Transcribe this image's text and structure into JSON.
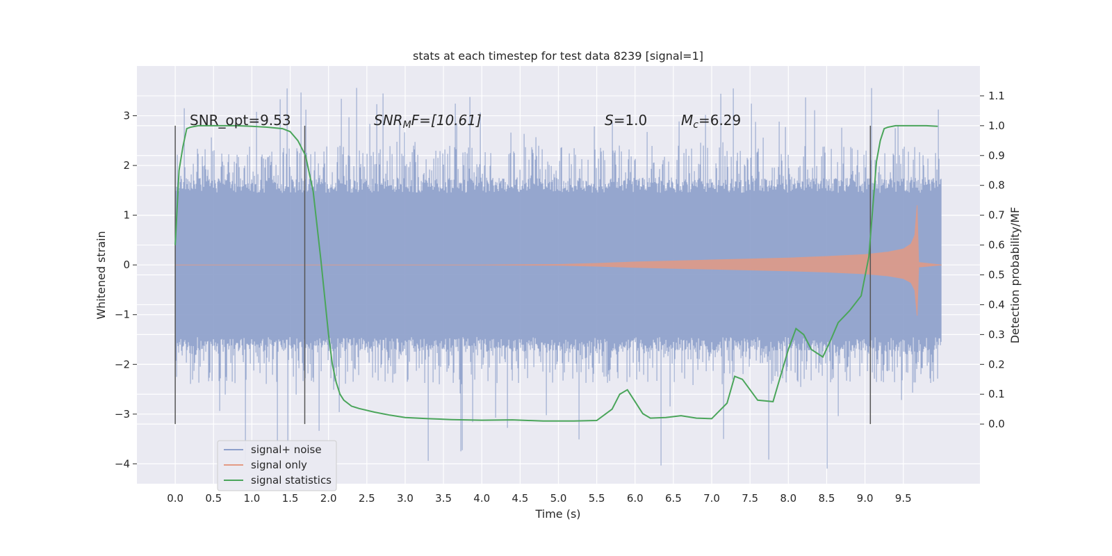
{
  "chart_data": {
    "type": "line",
    "title": "stats at each timestep for test data 8239 [signal=1]",
    "xlabel": "Time (s)",
    "ylabel": "Whitened strain",
    "y2label": "Detection probability/MF",
    "xlim": [
      -0.5,
      10.5
    ],
    "ylim": [
      -4.4,
      4.0
    ],
    "y2lim": [
      -0.2,
      1.2
    ],
    "xticks": [
      0.0,
      0.5,
      1.0,
      1.5,
      2.0,
      2.5,
      3.0,
      3.5,
      4.0,
      4.5,
      5.0,
      5.5,
      6.0,
      6.5,
      7.0,
      7.5,
      8.0,
      8.5,
      9.0,
      9.5
    ],
    "xtick_labels": [
      "0.0",
      "0.5",
      "1.0",
      "1.5",
      "2.0",
      "2.5",
      "3.0",
      "3.5",
      "4.0",
      "4.5",
      "5.0",
      "5.5",
      "6.0",
      "6.5",
      "7.0",
      "7.5",
      "8.0",
      "8.5",
      "9.0",
      "9.5"
    ],
    "yticks": [
      -4,
      -3,
      -2,
      -1,
      0,
      1,
      2,
      3
    ],
    "ytick_labels": [
      "−4",
      "−3",
      "−2",
      "−1",
      "0",
      "1",
      "2",
      "3"
    ],
    "y2ticks": [
      0.0,
      0.1,
      0.2,
      0.3,
      0.4,
      0.5,
      0.6,
      0.7,
      0.8,
      0.9,
      1.0,
      1.1
    ],
    "y2tick_labels": [
      "0.0",
      "0.1",
      "0.2",
      "0.3",
      "0.4",
      "0.5",
      "0.6",
      "0.7",
      "0.8",
      "0.9",
      "1.0",
      "1.1"
    ],
    "annotations": {
      "snr_opt": "SNR_opt=9.53",
      "snr_mf_main": "SNR",
      "snr_mf_sub": "M",
      "snr_mf_tail": "F=[10.61]",
      "s_main": "S",
      "s_tail": "=1.0",
      "mc_main": "M",
      "mc_sub": "c",
      "mc_tail": "=6.29"
    },
    "vertical_lines_x": [
      0.0,
      1.69,
      9.07
    ],
    "series": [
      {
        "name": "signal+ noise",
        "color": "#8da0cb",
        "x_range": [
          0.0,
          10.0
        ],
        "typical_band": [
          -1.6,
          1.6
        ],
        "max": 3.6,
        "min": -4.1
      },
      {
        "name": "signal only",
        "color": "#e39a84",
        "x": [
          0.0,
          4.0,
          5.0,
          5.5,
          6.0,
          6.5,
          7.0,
          7.5,
          8.0,
          8.5,
          9.0,
          9.3,
          9.5,
          9.6,
          9.65,
          9.68,
          9.7,
          10.0
        ],
        "amplitude": [
          0.0,
          0.0,
          0.01,
          0.03,
          0.06,
          0.08,
          0.1,
          0.12,
          0.14,
          0.17,
          0.21,
          0.26,
          0.32,
          0.42,
          0.6,
          1.2,
          0.05,
          0.0
        ]
      },
      {
        "name": "signal statistics",
        "color": "#4aa55a",
        "x": [
          0.0,
          0.05,
          0.1,
          0.15,
          0.2,
          0.3,
          0.5,
          0.8,
          1.0,
          1.2,
          1.4,
          1.5,
          1.6,
          1.7,
          1.8,
          1.9,
          2.0,
          2.05,
          2.1,
          2.15,
          2.2,
          2.3,
          2.4,
          2.6,
          2.8,
          3.0,
          3.3,
          3.6,
          4.0,
          4.4,
          4.8,
          5.2,
          5.5,
          5.7,
          5.8,
          5.9,
          6.0,
          6.1,
          6.2,
          6.4,
          6.6,
          6.8,
          7.0,
          7.2,
          7.3,
          7.4,
          7.6,
          7.8,
          8.0,
          8.1,
          8.2,
          8.3,
          8.45,
          8.55,
          8.65,
          8.8,
          8.95,
          9.05,
          9.1,
          9.15,
          9.2,
          9.25,
          9.3,
          9.4,
          9.6,
          9.8,
          9.95
        ],
        "y": [
          0.6,
          0.85,
          0.93,
          0.99,
          0.995,
          1.0,
          1.0,
          1.0,
          0.998,
          0.995,
          0.99,
          0.98,
          0.95,
          0.9,
          0.78,
          0.55,
          0.3,
          0.2,
          0.14,
          0.1,
          0.08,
          0.06,
          0.052,
          0.04,
          0.03,
          0.022,
          0.018,
          0.015,
          0.013,
          0.014,
          0.01,
          0.01,
          0.012,
          0.05,
          0.1,
          0.115,
          0.075,
          0.035,
          0.02,
          0.022,
          0.028,
          0.02,
          0.018,
          0.07,
          0.16,
          0.15,
          0.08,
          0.075,
          0.25,
          0.32,
          0.3,
          0.25,
          0.225,
          0.28,
          0.34,
          0.38,
          0.43,
          0.56,
          0.72,
          0.88,
          0.95,
          0.99,
          0.995,
          1.0,
          1.0,
          1.0,
          0.998
        ]
      }
    ],
    "legend": {
      "position": "lower-left",
      "entries": [
        "signal+ noise",
        "signal only",
        "signal statistics"
      ]
    },
    "colors": {
      "background": "#eaeaf2",
      "grid": "#ffffff",
      "vline": "#555555"
    }
  }
}
